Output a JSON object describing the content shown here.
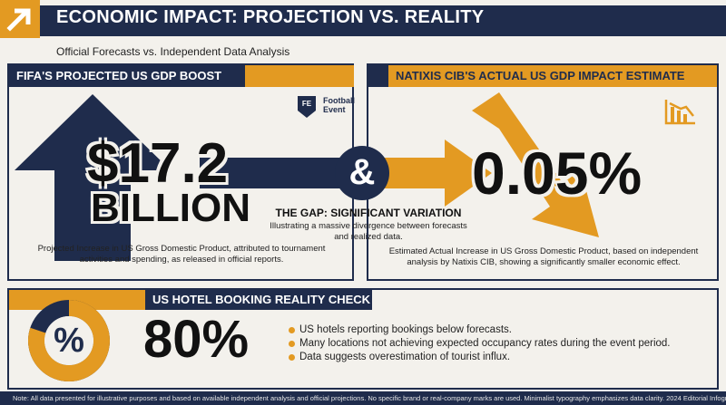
{
  "header": {
    "title": "ECONOMIC IMPACT: PROJECTION VS. REALITY",
    "subtitle": "Official Forecasts vs. Independent Data Analysis",
    "accent_color": "#e39a22",
    "navy_color": "#1f2c4c",
    "icon": "arrow-up-right-icon"
  },
  "fifa": {
    "title": "FIFA'S PROJECTED US GDP BOOST",
    "value": "$17.2",
    "unit": "BILLION",
    "caption": "Projected Increase in US Gross Domestic Product, attributed to tournament activities and spending, as released in official reports.",
    "brand_line1": "Football",
    "brand_line2": "Event",
    "brand_badge": "FE",
    "icon": "arrow-up-icon"
  },
  "gap": {
    "symbol": "&",
    "title": "THE GAP: SIGNIFICANT VARIATION",
    "description": "Illustrating a massive divergence between forecasts and realized data."
  },
  "natixis": {
    "title": "NATIXIS CIB'S ACTUAL US GDP IMPACT ESTIMATE",
    "value": "0.05%",
    "caption": "Estimated Actual Increase in US Gross Domestic Product, based on independent analysis by Natixis CIB, showing a significantly smaller economic effect.",
    "icon": "declining-chart-icon"
  },
  "hotel": {
    "title": "US HOTEL BOOKING REALITY CHECK",
    "value": "80%",
    "symbol": "%",
    "donut_fraction": 0.8,
    "bullets": [
      "US hotels reporting bookings below forecasts.",
      "Many locations not achieving expected occupancy rates during the event period.",
      "Data suggests overestimation of tourist influx."
    ]
  },
  "footer": {
    "note": "Note: All data presented for illustrative purposes and based on available independent analysis and official projections. No specific brand or real-company marks are used. Minimalist typography emphasizes data clarity. 2024 Editorial Infographic."
  }
}
